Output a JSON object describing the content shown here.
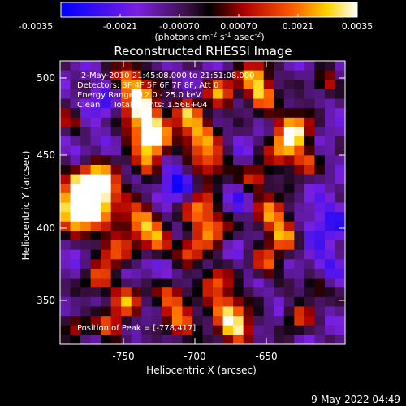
{
  "colorbar": {
    "ticks": [
      "-0.0035",
      "-0.0021",
      "-0.00070",
      "0.00070",
      "0.0021",
      "0.0035"
    ],
    "units_parts": [
      "(photons cm",
      "-2",
      " s",
      "-1",
      " asec",
      "-2",
      ")"
    ]
  },
  "image_info": {
    "line1": "2-May-2010 21:45:08.000 to 21:51:08.000",
    "line2": "Detectors: 3F 4F 5F 6F 7F 8F, Att 0",
    "line3": "Energy Range: 12.0 - 25.0 keV",
    "line4": "Clean     Total counts: 1.56E+04",
    "peak_label": "Position of Peak = [-778,417]"
  },
  "timestamp": "9-May-2022 04:49",
  "chart_data": {
    "type": "heatmap",
    "title": "Reconstructed RHESSI Image",
    "xlabel": "Heliocentric X (arcsec)",
    "ylabel": "Heliocentric Y (arcsec)",
    "xlim": [
      -797,
      -597
    ],
    "ylim": [
      316,
      511
    ],
    "x_ticks": [
      -750,
      -700,
      -650
    ],
    "y_ticks": [
      350,
      400,
      450,
      500
    ],
    "color_scale": {
      "min": -0.0035,
      "max": 0.0035,
      "colormap": "rhessi blue-purple-black-red-yellow-white"
    },
    "peak": {
      "x": -778,
      "y": 417
    },
    "grid_size": [
      28,
      30
    ],
    "blobs": [
      {
        "x": -778,
        "y": 417,
        "r": 14,
        "v": 0.0035
      },
      {
        "x": -772,
        "y": 425,
        "r": 10,
        "v": 0.0026
      },
      {
        "x": -785,
        "y": 405,
        "r": 9,
        "v": 0.0022
      },
      {
        "x": -738,
        "y": 468,
        "r": 11,
        "v": 0.0028
      },
      {
        "x": -730,
        "y": 455,
        "r": 8,
        "v": 0.0022
      },
      {
        "x": -742,
        "y": 485,
        "r": 9,
        "v": 0.002
      },
      {
        "x": -748,
        "y": 500,
        "r": 8,
        "v": 0.0018
      },
      {
        "x": -735,
        "y": 440,
        "r": 7,
        "v": 0.0017
      },
      {
        "x": -700,
        "y": 460,
        "r": 9,
        "v": 0.0024
      },
      {
        "x": -692,
        "y": 440,
        "r": 9,
        "v": 0.0019
      },
      {
        "x": -708,
        "y": 475,
        "r": 7,
        "v": 0.0016
      },
      {
        "x": -685,
        "y": 490,
        "r": 8,
        "v": 0.002
      },
      {
        "x": -660,
        "y": 500,
        "r": 8,
        "v": 0.0025
      },
      {
        "x": -655,
        "y": 486,
        "r": 7,
        "v": 0.0019
      },
      {
        "x": -632,
        "y": 465,
        "r": 9,
        "v": 0.0029
      },
      {
        "x": -640,
        "y": 450,
        "r": 8,
        "v": 0.0023
      },
      {
        "x": -625,
        "y": 440,
        "r": 6,
        "v": 0.0016
      },
      {
        "x": -660,
        "y": 430,
        "r": 7,
        "v": 0.0018
      },
      {
        "x": -648,
        "y": 405,
        "r": 9,
        "v": 0.0024
      },
      {
        "x": -640,
        "y": 388,
        "r": 7,
        "v": 0.0019
      },
      {
        "x": -652,
        "y": 372,
        "r": 7,
        "v": 0.0016
      },
      {
        "x": -700,
        "y": 410,
        "r": 8,
        "v": 0.0023
      },
      {
        "x": -690,
        "y": 395,
        "r": 8,
        "v": 0.0022
      },
      {
        "x": -705,
        "y": 380,
        "r": 7,
        "v": 0.0018
      },
      {
        "x": -740,
        "y": 400,
        "r": 9,
        "v": 0.0027
      },
      {
        "x": -728,
        "y": 385,
        "r": 7,
        "v": 0.0018
      },
      {
        "x": -760,
        "y": 380,
        "r": 8,
        "v": 0.0019
      },
      {
        "x": -770,
        "y": 360,
        "r": 7,
        "v": 0.0016
      },
      {
        "x": -750,
        "y": 345,
        "r": 8,
        "v": 0.002
      },
      {
        "x": -762,
        "y": 328,
        "r": 7,
        "v": 0.0017
      },
      {
        "x": -720,
        "y": 350,
        "r": 8,
        "v": 0.0021
      },
      {
        "x": -712,
        "y": 330,
        "r": 8,
        "v": 0.0018
      },
      {
        "x": -680,
        "y": 340,
        "r": 9,
        "v": 0.0026
      },
      {
        "x": -672,
        "y": 325,
        "r": 8,
        "v": 0.0022
      },
      {
        "x": -688,
        "y": 360,
        "r": 7,
        "v": 0.0017
      },
      {
        "x": -630,
        "y": 335,
        "r": 7,
        "v": 0.0015
      },
      {
        "x": -618,
        "y": 355,
        "r": 6,
        "v": 0.0012
      },
      {
        "x": -790,
        "y": 470,
        "r": 6,
        "v": 0.0012
      },
      {
        "x": -786,
        "y": 330,
        "r": 6,
        "v": 0.0011
      },
      {
        "x": -610,
        "y": 495,
        "r": 6,
        "v": 0.0012
      },
      {
        "x": -765,
        "y": 480,
        "r": 9,
        "v": -0.0026
      },
      {
        "x": -785,
        "y": 450,
        "r": 8,
        "v": -0.002
      },
      {
        "x": -715,
        "y": 425,
        "r": 10,
        "v": -0.003
      },
      {
        "x": -720,
        "y": 440,
        "r": 7,
        "v": -0.0018
      },
      {
        "x": -725,
        "y": 365,
        "r": 9,
        "v": -0.0022
      },
      {
        "x": -670,
        "y": 415,
        "r": 8,
        "v": -0.0022
      },
      {
        "x": -668,
        "y": 450,
        "r": 7,
        "v": -0.0016
      },
      {
        "x": -610,
        "y": 400,
        "r": 12,
        "v": -0.0026
      },
      {
        "x": -612,
        "y": 370,
        "r": 9,
        "v": -0.0022
      },
      {
        "x": -610,
        "y": 470,
        "r": 7,
        "v": -0.0018
      },
      {
        "x": -740,
        "y": 330,
        "r": 7,
        "v": -0.0016
      },
      {
        "x": -785,
        "y": 385,
        "r": 7,
        "v": -0.0018
      },
      {
        "x": -640,
        "y": 340,
        "r": 7,
        "v": -0.0014
      },
      {
        "x": -700,
        "y": 500,
        "r": 7,
        "v": -0.0016
      },
      {
        "x": -675,
        "y": 380,
        "r": 6,
        "v": -0.0014
      },
      {
        "x": -760,
        "y": 455,
        "r": 6,
        "v": -0.0014
      }
    ]
  }
}
